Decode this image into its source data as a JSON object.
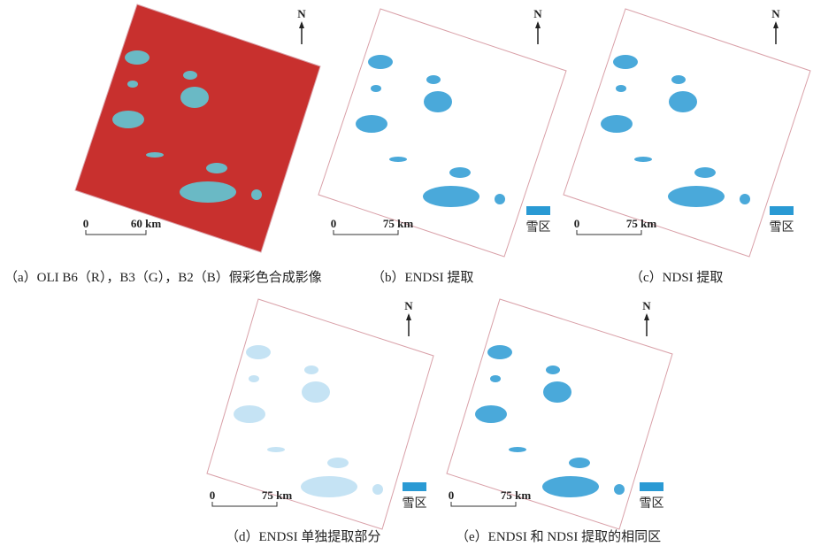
{
  "panels": [
    {
      "caption": "（a）OLI B6（R），B3（G），B2（B）假彩色合成影像",
      "north": "N",
      "scale_start": "0",
      "scale_end": "60 km"
    },
    {
      "caption": "（b）ENDSI 提取",
      "north": "N",
      "scale_start": "0",
      "scale_end": "75 km",
      "legend": "雪区"
    },
    {
      "caption": "（c）NDSI 提取",
      "north": "N",
      "scale_start": "0",
      "scale_end": "75 km",
      "legend": "雪区"
    },
    {
      "caption": "（d）ENDSI 单独提取部分",
      "north": "N",
      "scale_start": "0",
      "scale_end": "75 km",
      "legend": "雪区"
    },
    {
      "caption": "（e）ENDSI 和 NDSI 提取的相同区",
      "north": "N",
      "scale_start": "0",
      "scale_end": "75 km",
      "legend": "雪区"
    }
  ]
}
